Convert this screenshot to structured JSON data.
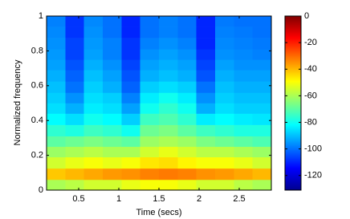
{
  "chart_data": {
    "type": "heatmap",
    "xlabel": "Time (secs)",
    "ylabel": "Normalized frequency",
    "x": [
      0.22,
      0.45,
      0.68,
      0.92,
      1.15,
      1.38,
      1.62,
      1.85,
      2.08,
      2.32,
      2.55,
      2.78
    ],
    "y": [
      0.03,
      0.09,
      0.16,
      0.22,
      0.28,
      0.34,
      0.41,
      0.47,
      0.53,
      0.59,
      0.66,
      0.72,
      0.78,
      0.84,
      0.91,
      0.97
    ],
    "values": [
      [
        -60,
        -58,
        -55,
        -55,
        -52,
        -50,
        -50,
        -52,
        -55,
        -55,
        -58,
        -60
      ],
      [
        -42,
        -40,
        -38,
        -36,
        -35,
        -33,
        -32,
        -33,
        -35,
        -36,
        -38,
        -40
      ],
      [
        -55,
        -52,
        -50,
        -52,
        -50,
        -46,
        -45,
        -48,
        -50,
        -50,
        -52,
        -55
      ],
      [
        -62,
        -60,
        -58,
        -60,
        -60,
        -55,
        -52,
        -55,
        -58,
        -58,
        -60,
        -62
      ],
      [
        -70,
        -68,
        -66,
        -68,
        -70,
        -62,
        -60,
        -62,
        -66,
        -68,
        -70,
        -72
      ],
      [
        -76,
        -78,
        -74,
        -76,
        -80,
        -68,
        -66,
        -70,
        -74,
        -76,
        -78,
        -78
      ],
      [
        -82,
        -86,
        -80,
        -82,
        -88,
        -74,
        -72,
        -76,
        -84,
        -82,
        -84,
        -85
      ],
      [
        -86,
        -92,
        -84,
        -86,
        -94,
        -80,
        -76,
        -80,
        -92,
        -86,
        -88,
        -88
      ],
      [
        -88,
        -96,
        -86,
        -88,
        -98,
        -84,
        -80,
        -84,
        -96,
        -88,
        -90,
        -90
      ],
      [
        -90,
        -100,
        -88,
        -92,
        -102,
        -88,
        -86,
        -88,
        -100,
        -90,
        -92,
        -92
      ],
      [
        -92,
        -102,
        -90,
        -94,
        -104,
        -92,
        -90,
        -92,
        -104,
        -92,
        -94,
        -94
      ],
      [
        -94,
        -104,
        -92,
        -96,
        -106,
        -94,
        -92,
        -94,
        -106,
        -94,
        -96,
        -96
      ],
      [
        -95,
        -106,
        -94,
        -98,
        -108,
        -96,
        -94,
        -96,
        -108,
        -96,
        -97,
        -98
      ],
      [
        -96,
        -106,
        -95,
        -98,
        -108,
        -98,
        -96,
        -98,
        -110,
        -97,
        -98,
        -99
      ],
      [
        -97,
        -108,
        -96,
        -100,
        -110,
        -100,
        -98,
        -100,
        -110,
        -98,
        -99,
        -100
      ],
      [
        -98,
        -108,
        -97,
        -100,
        -110,
        -100,
        -98,
        -100,
        -110,
        -99,
        -100,
        -100
      ]
    ],
    "xlim": [
      0.1,
      2.9
    ],
    "xticks": [
      0.5,
      1,
      1.5,
      2,
      2.5
    ],
    "ylim": [
      0,
      1
    ],
    "yticks": [
      0,
      0.2,
      0.4,
      0.6,
      0.8,
      1
    ],
    "colormap": "jet",
    "clim": [
      -131,
      0
    ],
    "cticks": [
      0,
      -20,
      -40,
      -60,
      -80,
      -100,
      -120
    ]
  }
}
